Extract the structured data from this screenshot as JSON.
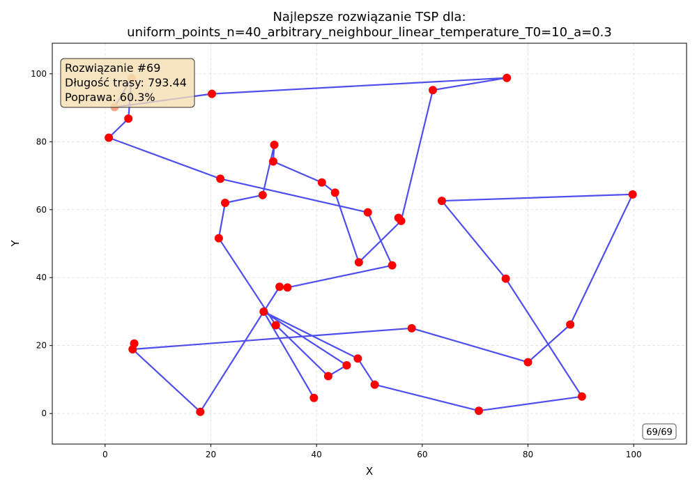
{
  "chart_data": {
    "type": "line",
    "title_line1": "Najlepsze rozwiązanie TSP dla:",
    "title_line2": "uniform_points_n=40_arbitrary_neighbour_linear_temperature_T0=10_a=0.3",
    "xlabel": "X",
    "ylabel": "Y",
    "xlim": [
      -10,
      110
    ],
    "ylim": [
      -9,
      109
    ],
    "x_ticks": [
      0,
      20,
      40,
      60,
      80,
      100
    ],
    "y_ticks": [
      0,
      20,
      40,
      60,
      80,
      100
    ],
    "grid": true,
    "route_color": "#4444ee",
    "point_color": "#ff0000",
    "highlight_color": "#f4a582",
    "route": [
      [
        5,
        98.7
      ],
      [
        1.8,
        90.2
      ],
      [
        20.2,
        94.1
      ],
      [
        76,
        98.8
      ],
      [
        62,
        95.2
      ],
      [
        56,
        56.7
      ],
      [
        48,
        44.5
      ],
      [
        43.5,
        65
      ],
      [
        41,
        68
      ],
      [
        31.8,
        74.2
      ],
      [
        32,
        79.1
      ],
      [
        29.8,
        64.3
      ],
      [
        22.7,
        62
      ],
      [
        21.5,
        51.6
      ],
      [
        32.3,
        26
      ],
      [
        42.2,
        11
      ],
      [
        45.7,
        14.2
      ],
      [
        30,
        30
      ],
      [
        47.8,
        16.2
      ],
      [
        51,
        8.5
      ],
      [
        70.7,
        0.8
      ],
      [
        90.2,
        5
      ],
      [
        75.8,
        39.7
      ],
      [
        63.7,
        62.6
      ],
      [
        99.8,
        64.5
      ],
      [
        88,
        26.2
      ],
      [
        80,
        15.1
      ],
      [
        58,
        25.1
      ],
      [
        5.2,
        18.9
      ],
      [
        18,
        0.5
      ],
      [
        30,
        30
      ],
      [
        39.5,
        4.6
      ],
      [
        30,
        30
      ],
      [
        33,
        37.3
      ],
      [
        34.5,
        37.1
      ],
      [
        54.3,
        43.6
      ],
      [
        49.7,
        59.2
      ],
      [
        21.8,
        69.1
      ],
      [
        0.7,
        81.2
      ],
      [
        4.4,
        86.8
      ],
      [
        5,
        98.7
      ]
    ],
    "points": [
      [
        5,
        98.7
      ],
      [
        1.8,
        90.2
      ],
      [
        4.4,
        86.8
      ],
      [
        0.7,
        81.2
      ],
      [
        20.2,
        94.1
      ],
      [
        76,
        98.8
      ],
      [
        62,
        95.2
      ],
      [
        55.5,
        57.6
      ],
      [
        56,
        56.7
      ],
      [
        48,
        44.5
      ],
      [
        43.5,
        65
      ],
      [
        41,
        68
      ],
      [
        31.8,
        74.2
      ],
      [
        32,
        79.1
      ],
      [
        29.8,
        64.3
      ],
      [
        22.7,
        62
      ],
      [
        21.8,
        69.1
      ],
      [
        21.5,
        51.6
      ],
      [
        49.7,
        59.2
      ],
      [
        54.3,
        43.6
      ],
      [
        33,
        37.3
      ],
      [
        34.5,
        37.1
      ],
      [
        30,
        30
      ],
      [
        32.3,
        26
      ],
      [
        42.2,
        11
      ],
      [
        45.7,
        14.2
      ],
      [
        39.5,
        4.6
      ],
      [
        47.8,
        16.2
      ],
      [
        51,
        8.5
      ],
      [
        70.7,
        0.8
      ],
      [
        90.2,
        5
      ],
      [
        75.8,
        39.7
      ],
      [
        63.7,
        62.6
      ],
      [
        99.8,
        64.5
      ],
      [
        88,
        26.2
      ],
      [
        80,
        15.1
      ],
      [
        58,
        25.1
      ],
      [
        5.5,
        20.6
      ],
      [
        5.2,
        18.9
      ],
      [
        18,
        0.5
      ]
    ],
    "highlighted_points": [
      0,
      1
    ],
    "info_box": {
      "line1": "Rozwiązanie #69",
      "line2": "Długość trasy: 793.44",
      "line3": "Poprawa: 60.3%"
    },
    "counter": "69/69"
  }
}
